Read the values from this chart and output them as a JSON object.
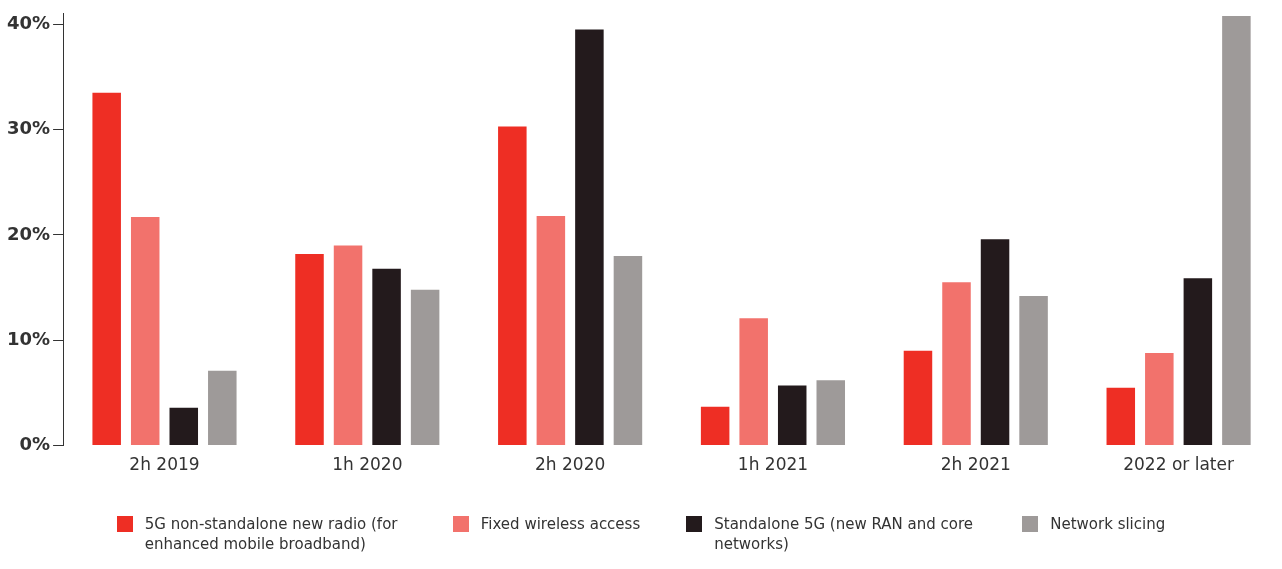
{
  "chart_data": {
    "type": "bar",
    "categories": [
      "2h 2019",
      "1h 2020",
      "2h 2020",
      "1h 2021",
      "2h 2021",
      "2022 or later"
    ],
    "series": [
      {
        "name": "5G non-standalone new radio (for enhanced mobile broadband)",
        "color": "#ee2e24",
        "values": [
          33.5,
          18.2,
          30.3,
          3.7,
          9.0,
          5.5
        ]
      },
      {
        "name": "Fixed wireless access",
        "color": "#f2726c",
        "values": [
          21.7,
          19.0,
          21.8,
          12.1,
          15.5,
          8.8
        ]
      },
      {
        "name": "Standalone 5G (new RAN and core networks)",
        "color": "#231a1c",
        "values": [
          3.6,
          16.8,
          39.5,
          5.7,
          19.6,
          15.9
        ]
      },
      {
        "name": "Network slicing",
        "color": "#9e9a99",
        "values": [
          7.1,
          14.8,
          18.0,
          6.2,
          14.2,
          40.8
        ]
      }
    ],
    "ylim": [
      0,
      41
    ],
    "yticks": [
      {
        "value": 0,
        "label": "0%"
      },
      {
        "value": 10,
        "label": "10%"
      },
      {
        "value": 20,
        "label": "20%"
      },
      {
        "value": 30,
        "label": "30%"
      },
      {
        "value": 40,
        "label": "40%"
      }
    ],
    "grid": false,
    "legend": "bottom"
  }
}
